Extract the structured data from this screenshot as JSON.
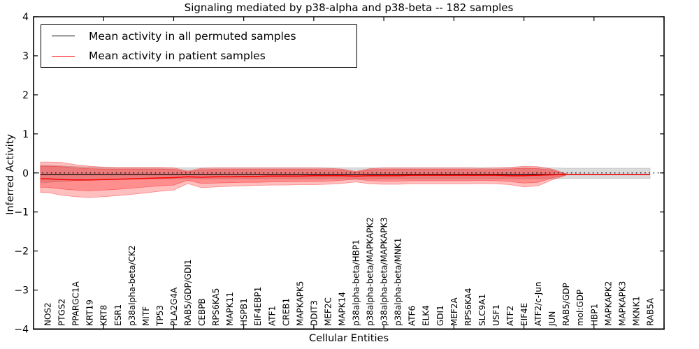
{
  "chart_data": {
    "type": "line",
    "title": "Signaling mediated by p38-alpha and p38-beta -- 182 samples",
    "xlabel": "Cellular Entities",
    "ylabel": "Inferred Activity",
    "ylim": [
      -4,
      4
    ],
    "yticks": [
      -4,
      -3,
      -2,
      -1,
      0,
      1,
      2,
      3,
      4
    ],
    "xlim": [
      0,
      45
    ],
    "xticks": [
      5,
      10,
      15,
      20,
      25,
      30,
      35,
      40,
      45
    ],
    "grid": false,
    "legend_position": "upper left",
    "zero_line": {
      "y": 0,
      "style": "dotted",
      "color": "#000000"
    },
    "categories": [
      "NOS2",
      "PTGS2",
      "PPARGC1A",
      "KRT19",
      "KRT8",
      "ESR1",
      "p38alpha-beta/CK2",
      "MITF",
      "TP53",
      "PLA2G4A",
      "RAB5/GDP/GDI1",
      "CEBPB",
      "RPS6KA5",
      "MAPK11",
      "HSPB1",
      "EIF4EBP1",
      "ATF1",
      "CREB1",
      "MAPKAPK5",
      "DDIT3",
      "MEF2C",
      "MAPK14",
      "p38alpha-beta/HBP1",
      "p38alpha-beta/MAPKAPK2",
      "p38alpha-beta/MAPKAPK3",
      "p38alpha-beta/MNK1",
      "ATF6",
      "ELK4",
      "GDI1",
      "MEF2A",
      "RPS6KA4",
      "SLC9A1",
      "USF1",
      "ATF2",
      "EIF4E",
      "ATF2/c-Jun",
      "JUN",
      "RAB5/GDP",
      "mol:GDP",
      "HBP1",
      "MAPKAPK2",
      "MAPKAPK3",
      "MKNK1",
      "RAB5A"
    ],
    "series": [
      {
        "name": "Mean activity in all permuted samples",
        "color": "#000000",
        "values": [
          -0.04,
          -0.04,
          -0.04,
          -0.04,
          -0.04,
          -0.04,
          -0.04,
          -0.04,
          -0.04,
          -0.04,
          -0.04,
          -0.04,
          -0.04,
          -0.04,
          -0.04,
          -0.04,
          -0.04,
          -0.04,
          -0.04,
          -0.04,
          -0.04,
          -0.04,
          -0.04,
          -0.04,
          -0.04,
          -0.04,
          -0.04,
          -0.04,
          -0.04,
          -0.04,
          -0.04,
          -0.04,
          -0.04,
          -0.04,
          -0.04,
          -0.04,
          -0.04,
          -0.04,
          -0.04,
          -0.04,
          -0.04,
          -0.04,
          -0.04,
          -0.04
        ]
      },
      {
        "name": "Mean activity in patient samples",
        "color": "#ff0000",
        "values": [
          -0.15,
          -0.17,
          -0.18,
          -0.18,
          -0.17,
          -0.16,
          -0.15,
          -0.14,
          -0.13,
          -0.12,
          -0.1,
          -0.11,
          -0.1,
          -0.1,
          -0.09,
          -0.09,
          -0.08,
          -0.08,
          -0.08,
          -0.07,
          -0.07,
          -0.07,
          -0.08,
          -0.07,
          -0.07,
          -0.07,
          -0.06,
          -0.06,
          -0.06,
          -0.06,
          -0.06,
          -0.06,
          -0.06,
          -0.07,
          -0.07,
          -0.06,
          -0.05,
          -0.04,
          -0.04,
          -0.04,
          -0.04,
          -0.04,
          -0.04,
          -0.04
        ]
      }
    ],
    "bands": [
      {
        "name": "permuted-samples-band",
        "color": "#999999",
        "alpha": 0.35,
        "upper": [
          0.2,
          0.18,
          0.16,
          0.15,
          0.14,
          0.13,
          0.13,
          0.13,
          0.13,
          0.13,
          0.13,
          0.13,
          0.13,
          0.13,
          0.13,
          0.13,
          0.13,
          0.13,
          0.13,
          0.13,
          0.13,
          0.13,
          0.13,
          0.13,
          0.13,
          0.13,
          0.13,
          0.13,
          0.13,
          0.13,
          0.13,
          0.13,
          0.13,
          0.13,
          0.13,
          0.13,
          0.13,
          0.12,
          0.12,
          0.12,
          0.12,
          0.12,
          0.12,
          0.12
        ],
        "lower": [
          -0.24,
          -0.22,
          -0.2,
          -0.19,
          -0.18,
          -0.17,
          -0.16,
          -0.15,
          -0.15,
          -0.15,
          -0.15,
          -0.15,
          -0.15,
          -0.15,
          -0.15,
          -0.15,
          -0.15,
          -0.15,
          -0.15,
          -0.15,
          -0.15,
          -0.15,
          -0.15,
          -0.15,
          -0.15,
          -0.15,
          -0.15,
          -0.15,
          -0.15,
          -0.15,
          -0.15,
          -0.15,
          -0.15,
          -0.15,
          -0.15,
          -0.15,
          -0.15,
          -0.14,
          -0.14,
          -0.14,
          -0.14,
          -0.14,
          -0.14,
          -0.14
        ]
      },
      {
        "name": "patient-samples-band-outer",
        "color": "#ff0000",
        "alpha": 0.25,
        "upper": [
          0.28,
          0.27,
          0.21,
          0.17,
          0.15,
          0.14,
          0.14,
          0.14,
          0.14,
          0.13,
          0.05,
          0.12,
          0.13,
          0.13,
          0.13,
          0.13,
          0.13,
          0.13,
          0.13,
          0.13,
          0.12,
          0.1,
          0.04,
          0.11,
          0.13,
          0.13,
          0.13,
          0.13,
          0.13,
          0.13,
          0.13,
          0.12,
          0.13,
          0.14,
          0.17,
          0.16,
          0.1,
          -0.02,
          null,
          null,
          null,
          null,
          null,
          null
        ],
        "lower": [
          -0.5,
          -0.57,
          -0.61,
          -0.63,
          -0.61,
          -0.58,
          -0.55,
          -0.51,
          -0.47,
          -0.44,
          -0.27,
          -0.38,
          -0.36,
          -0.34,
          -0.33,
          -0.32,
          -0.31,
          -0.31,
          -0.3,
          -0.3,
          -0.29,
          -0.27,
          -0.23,
          -0.28,
          -0.29,
          -0.29,
          -0.28,
          -0.28,
          -0.28,
          -0.28,
          -0.28,
          -0.27,
          -0.28,
          -0.3,
          -0.36,
          -0.33,
          -0.18,
          -0.06,
          null,
          null,
          null,
          null,
          null,
          null
        ]
      },
      {
        "name": "patient-samples-band-inner",
        "color": "#ff0000",
        "alpha": 0.25,
        "upper": [
          0.17,
          0.16,
          0.13,
          0.11,
          0.1,
          0.1,
          0.1,
          0.1,
          0.1,
          0.09,
          0.03,
          0.08,
          0.09,
          0.09,
          0.09,
          0.09,
          0.09,
          0.09,
          0.09,
          0.09,
          0.08,
          0.07,
          0.02,
          0.08,
          0.09,
          0.09,
          0.09,
          0.09,
          0.09,
          0.09,
          0.09,
          0.08,
          0.09,
          0.1,
          0.12,
          0.11,
          0.07,
          -0.03,
          null,
          null,
          null,
          null,
          null,
          null
        ],
        "lower": [
          -0.37,
          -0.41,
          -0.44,
          -0.46,
          -0.44,
          -0.42,
          -0.39,
          -0.36,
          -0.33,
          -0.31,
          -0.19,
          -0.27,
          -0.26,
          -0.25,
          -0.24,
          -0.24,
          -0.23,
          -0.23,
          -0.22,
          -0.22,
          -0.21,
          -0.19,
          -0.16,
          -0.2,
          -0.21,
          -0.21,
          -0.2,
          -0.2,
          -0.2,
          -0.2,
          -0.2,
          -0.19,
          -0.2,
          -0.22,
          -0.26,
          -0.24,
          -0.13,
          -0.05,
          null,
          null,
          null,
          null,
          null,
          null
        ]
      }
    ]
  }
}
